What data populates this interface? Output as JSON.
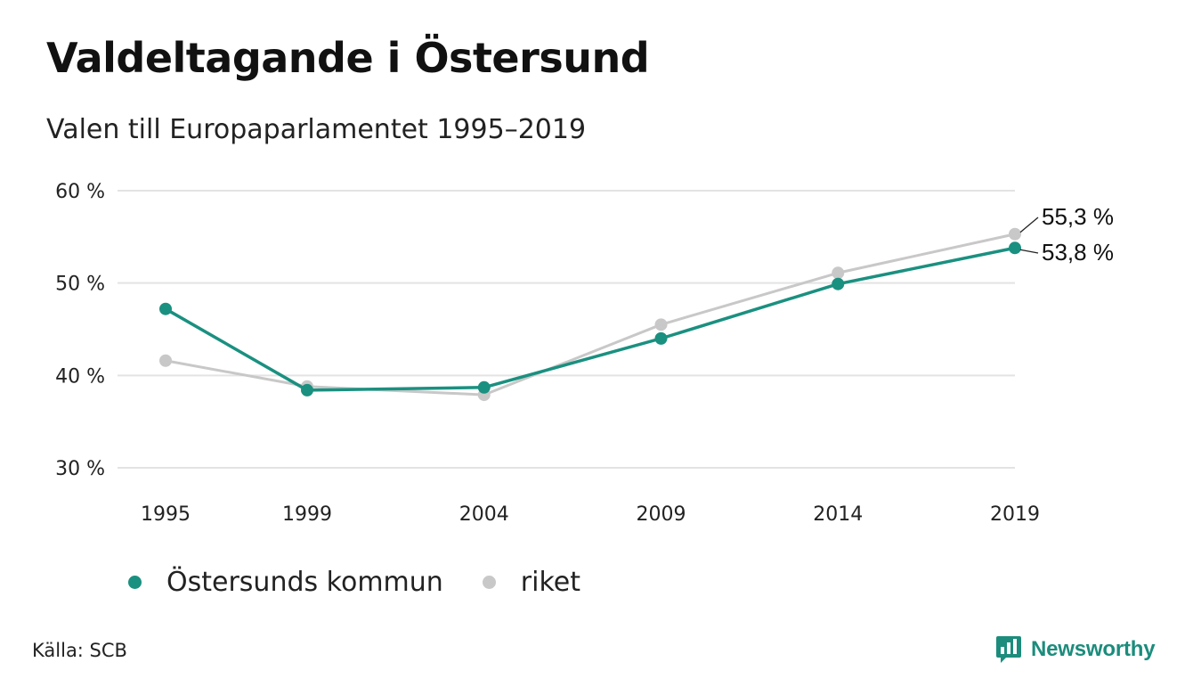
{
  "header": {
    "title": "Valdeltagande i Östersund",
    "subtitle": "Valen till Europaparlamentet 1995–2019"
  },
  "legend": {
    "items": [
      {
        "label": "Östersunds kommun",
        "color": "#1a9080"
      },
      {
        "label": "riket",
        "color": "#c8c8c8"
      }
    ]
  },
  "footer": {
    "source": "Källa: SCB",
    "logo_text": "Newsworthy",
    "logo_icon": "newsworthy-chat-bars-icon"
  },
  "chart_data": {
    "type": "line",
    "title": "Valdeltagande i Östersund",
    "subtitle": "Valen till Europaparlamentet 1995–2019",
    "xlabel": "",
    "ylabel": "",
    "categories": [
      "1995",
      "1999",
      "2004",
      "2009",
      "2014",
      "2019"
    ],
    "x": [
      1995,
      1999,
      2004,
      2009,
      2014,
      2019
    ],
    "ylim": [
      30,
      60
    ],
    "yticks": [
      30,
      40,
      50,
      60
    ],
    "ytick_labels": [
      "30 %",
      "40 %",
      "50 %",
      "60 %"
    ],
    "grid": true,
    "legend_position": "bottom-left",
    "series": [
      {
        "name": "riket",
        "color": "#c8c8c8",
        "values": [
          41.6,
          38.8,
          37.9,
          45.5,
          51.1,
          55.3
        ],
        "end_label": "55,3 %"
      },
      {
        "name": "Östersunds kommun",
        "color": "#1a9080",
        "values": [
          47.2,
          38.4,
          38.7,
          44.0,
          49.9,
          53.8
        ],
        "end_label": "53,8 %"
      }
    ]
  }
}
